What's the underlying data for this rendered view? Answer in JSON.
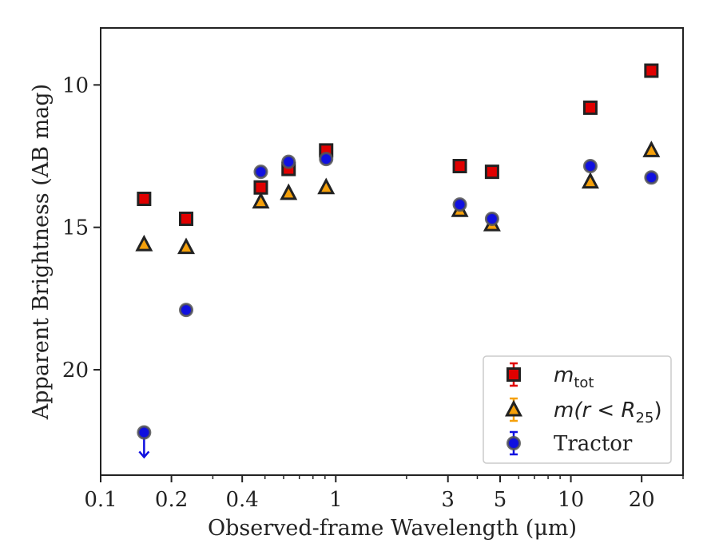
{
  "chart_data": {
    "type": "scatter",
    "xlabel": "Observed-frame Wavelength (μm)",
    "ylabel": "Apparent Brightness (AB mag)",
    "x_scale": "log",
    "xlim": [
      0.1,
      30
    ],
    "ylim": [
      23.7,
      8.0
    ],
    "y_inverted": true,
    "x_ticks": [
      {
        "value": 0.1,
        "label": "0.1"
      },
      {
        "value": 0.2,
        "label": "0.2"
      },
      {
        "value": 0.4,
        "label": "0.4"
      },
      {
        "value": 1,
        "label": "1"
      },
      {
        "value": 3,
        "label": "3"
      },
      {
        "value": 5,
        "label": "5"
      },
      {
        "value": 10,
        "label": "10"
      },
      {
        "value": 20,
        "label": "20"
      }
    ],
    "y_ticks": [
      {
        "value": 10,
        "label": "10"
      },
      {
        "value": 15,
        "label": "15"
      },
      {
        "value": 20,
        "label": "20"
      }
    ],
    "legend_position": "lower-right",
    "series": [
      {
        "name": "m_tot",
        "legend_main": "m",
        "legend_sub": "tot",
        "marker": "square",
        "color": "#e00000",
        "points": [
          {
            "x": 0.153,
            "y": 14.0
          },
          {
            "x": 0.231,
            "y": 14.7
          },
          {
            "x": 0.48,
            "y": 13.6
          },
          {
            "x": 0.63,
            "y": 12.95
          },
          {
            "x": 0.91,
            "y": 12.3
          },
          {
            "x": 3.37,
            "y": 12.85
          },
          {
            "x": 4.62,
            "y": 13.05
          },
          {
            "x": 12.1,
            "y": 10.8
          },
          {
            "x": 22.0,
            "y": 9.5
          }
        ]
      },
      {
        "name": "m(r < R25)",
        "legend_main": "m(r < R",
        "legend_sub": "25",
        "legend_tail": ")",
        "marker": "triangle",
        "color": "#f5a00a",
        "points": [
          {
            "x": 0.153,
            "y": 15.6
          },
          {
            "x": 0.231,
            "y": 15.7
          },
          {
            "x": 0.48,
            "y": 14.1
          },
          {
            "x": 0.63,
            "y": 13.8
          },
          {
            "x": 0.91,
            "y": 13.6
          },
          {
            "x": 3.37,
            "y": 14.4
          },
          {
            "x": 4.62,
            "y": 14.9
          },
          {
            "x": 12.1,
            "y": 13.4
          },
          {
            "x": 22.0,
            "y": 12.3
          }
        ]
      },
      {
        "name": "Tractor",
        "legend_main": "Tractor",
        "marker": "circle",
        "color": "#1010e0",
        "points": [
          {
            "x": 0.153,
            "y": 22.2,
            "upper_limit": true
          },
          {
            "x": 0.231,
            "y": 17.9
          },
          {
            "x": 0.48,
            "y": 13.05
          },
          {
            "x": 0.63,
            "y": 12.7
          },
          {
            "x": 0.91,
            "y": 12.6
          },
          {
            "x": 3.37,
            "y": 14.2
          },
          {
            "x": 4.62,
            "y": 14.7
          },
          {
            "x": 12.1,
            "y": 12.85
          },
          {
            "x": 22.0,
            "y": 13.25
          }
        ]
      }
    ]
  }
}
